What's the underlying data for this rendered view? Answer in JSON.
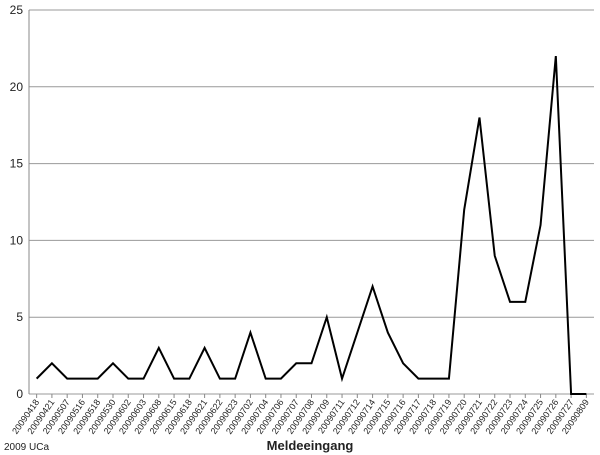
{
  "chart_data": {
    "type": "line",
    "x_label": "Meldeeingang",
    "note": "2009 UCa",
    "categories": [
      "20090418",
      "20090421",
      "20090507",
      "20090516",
      "20090518",
      "20090530",
      "20090602",
      "20090603",
      "20090608",
      "20090615",
      "20090618",
      "20090621",
      "20090622",
      "20090623",
      "20090702",
      "20090704",
      "20090706",
      "20090707",
      "20090708",
      "20090709",
      "20090711",
      "20090712",
      "20090714",
      "20090715",
      "20090716",
      "20090717",
      "20090718",
      "20090719",
      "20090720",
      "20090721",
      "20090722",
      "20090723",
      "20090724",
      "20090725",
      "20090726",
      "20090727",
      "20090809"
    ],
    "values": [
      1,
      2,
      1,
      1,
      1,
      2,
      1,
      1,
      3,
      1,
      1,
      3,
      1,
      1,
      4,
      1,
      1,
      2,
      2,
      5,
      1,
      4,
      7,
      4,
      2,
      1,
      1,
      1,
      12,
      18,
      9,
      6,
      6,
      11,
      22,
      0,
      0
    ],
    "color": "#000000",
    "ylim": [
      0,
      25
    ],
    "yticks": [
      0,
      5,
      10,
      15,
      20,
      25
    ],
    "grid": true
  }
}
